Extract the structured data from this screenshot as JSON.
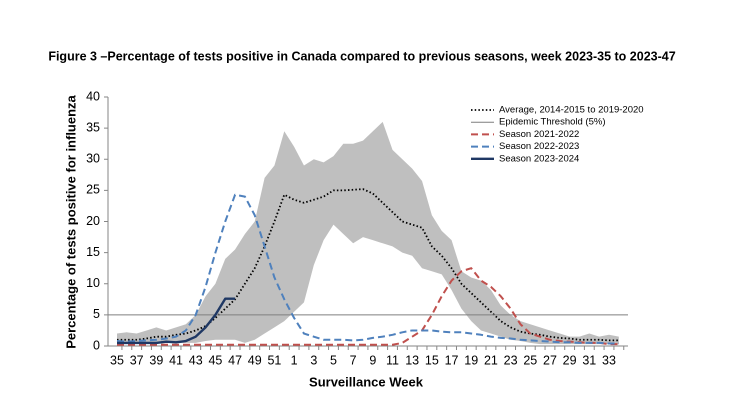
{
  "chart_data": {
    "type": "line",
    "title": "Figure 3 –Percentage of tests positive in Canada compared to previous seasons, week 2023-35 to 2023-47",
    "x_label": "Surveillance Week",
    "y_label": "Percentage of tests positive for influenza",
    "categories": [
      "35",
      null,
      "37",
      null,
      "39",
      null,
      "41",
      null,
      "43",
      null,
      "45",
      null,
      "47",
      null,
      "49",
      null,
      "51",
      null,
      "1",
      null,
      "3",
      null,
      "5",
      null,
      "7",
      null,
      "9",
      null,
      "11",
      null,
      "13",
      null,
      "15",
      null,
      "17",
      null,
      "19",
      null,
      "21",
      null,
      "23",
      null,
      "25",
      null,
      "27",
      null,
      "29",
      null,
      "31",
      null,
      "33",
      null
    ],
    "ylim": [
      0,
      40
    ],
    "yticks": [
      0,
      5,
      10,
      15,
      20,
      25,
      30,
      35,
      40
    ],
    "band": {
      "color": "#bfbfbf",
      "upper": [
        2,
        2.2,
        2,
        2.5,
        3,
        2.5,
        3,
        3.5,
        5,
        8,
        10,
        14,
        15.5,
        18,
        20,
        27,
        29,
        34.5,
        32,
        29,
        30,
        29.5,
        30.5,
        32.5,
        32.5,
        33,
        34.5,
        36,
        31.5,
        30,
        28.5,
        26.5,
        21,
        18.5,
        17,
        12,
        11,
        10.5,
        9,
        6.5,
        5,
        4,
        3.5,
        3,
        2.5,
        2,
        1.5,
        1.5,
        2,
        1.5,
        1.8,
        1.5
      ],
      "lower": [
        0.3,
        0.3,
        0.5,
        0.5,
        0.5,
        0.5,
        0.5,
        0.5,
        0.5,
        0.8,
        1,
        1,
        1,
        0.5,
        1,
        2,
        3,
        4,
        5.5,
        7,
        13,
        17,
        19.5,
        18,
        16.5,
        17.5,
        17,
        16.5,
        16,
        15,
        14.5,
        12.5,
        12,
        11.5,
        9,
        6,
        4,
        2.5,
        2,
        1.5,
        1,
        0.8,
        0.5,
        0.3,
        0.3,
        0.3,
        0.3,
        0.3,
        0.3,
        0.3,
        0.3,
        0.3
      ]
    },
    "series": [
      {
        "name": "Average, 2014-2015 to 2019-2020",
        "color": "#000000",
        "dash": "dotted",
        "values": [
          1,
          1,
          1,
          1.2,
          1.5,
          1.5,
          1.8,
          2,
          2.5,
          3.2,
          4.5,
          6,
          7.5,
          10,
          12.5,
          16,
          20,
          24.3,
          23.5,
          23,
          23.5,
          24,
          25,
          25,
          25.1,
          25.2,
          24.5,
          23,
          21.5,
          20,
          19.5,
          19,
          16,
          14.5,
          12.5,
          10,
          8.5,
          7,
          5.5,
          4,
          3,
          2.3,
          2,
          1.8,
          1.5,
          1.3,
          1.2,
          1,
          1,
          1,
          0.9,
          0.9
        ]
      },
      {
        "name": "Epidemic Threshold (5%)",
        "color": "#7f7f7f",
        "dash": "thin",
        "level": 5
      },
      {
        "name": "Season 2021-2022",
        "color": "#c0504d",
        "dash": "dashed",
        "values": [
          0.2,
          0.2,
          0.2,
          0.2,
          0.2,
          0.2,
          0.2,
          0.2,
          0.2,
          0.2,
          0.2,
          0.2,
          0.2,
          0.2,
          0.2,
          0.2,
          0.2,
          0.2,
          0.2,
          0.2,
          0.2,
          0.2,
          0.2,
          0.2,
          0.2,
          0.2,
          0.2,
          0.2,
          0.2,
          0.5,
          1.5,
          2.5,
          5,
          8,
          10.5,
          12,
          12.5,
          10.5,
          9.5,
          8,
          6,
          3.5,
          2,
          1.5,
          1,
          0.8,
          0.7,
          0.6,
          0.5,
          0.5,
          0.3,
          0.3
        ]
      },
      {
        "name": "Season 2022-2023",
        "color": "#4f81bd",
        "dash": "dashed",
        "values": [
          0.8,
          0.7,
          0.8,
          0.9,
          1,
          1.2,
          1.5,
          2.5,
          5,
          9.5,
          15,
          20,
          24.3,
          24,
          21,
          16,
          11,
          7.5,
          4.5,
          2,
          1.5,
          1,
          1,
          1,
          0.9,
          1,
          1.3,
          1.5,
          1.8,
          2.2,
          2.5,
          2.5,
          2.5,
          2.3,
          2.2,
          2.2,
          2,
          1.8,
          1.5,
          1.3,
          1.2,
          1,
          0.9,
          0.8,
          0.7,
          0.6,
          0.6,
          0.5,
          0.5,
          0.5,
          0.4,
          0.4
        ]
      },
      {
        "name": "Season 2023-2024",
        "color": "#1f3864",
        "dash": "solid",
        "values": [
          0.5,
          0.5,
          0.5,
          0.5,
          0.5,
          0.7,
          0.6,
          0.8,
          1.5,
          3,
          5,
          7.6,
          7.6,
          null,
          null,
          null,
          null,
          null,
          null,
          null,
          null,
          null,
          null,
          null,
          null,
          null,
          null,
          null,
          null,
          null,
          null,
          null,
          null,
          null,
          null,
          null,
          null,
          null,
          null,
          null,
          null,
          null,
          null,
          null,
          null,
          null,
          null,
          null,
          null,
          null,
          null,
          null
        ]
      }
    ]
  }
}
